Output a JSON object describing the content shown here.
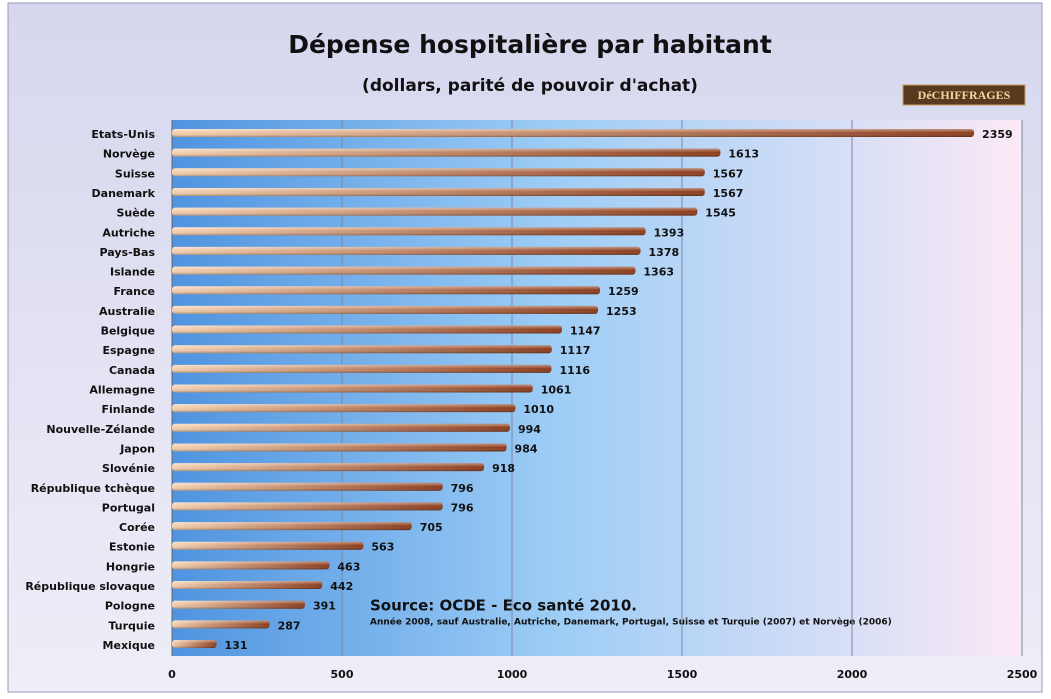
{
  "chart_data": {
    "type": "bar",
    "orientation": "horizontal",
    "title": "Dépense hospitalière par habitant",
    "subtitle": "(dollars, parité de pouvoir d'achat)",
    "logo": "DéCHIFFRAGES",
    "source": "Source: OCDE - Eco santé 2010.",
    "note": "Année 2008, sauf Australie, Autriche,  Danemark, Portugal, Suisse et Turquie (2007) et Norvège (2006)",
    "categories": [
      "Etats-Unis",
      "Norvège",
      "Suisse",
      "Danemark",
      "Suède",
      "Autriche",
      "Pays-Bas",
      "Islande",
      "France",
      "Australie",
      "Belgique",
      "Espagne",
      "Canada",
      "Allemagne",
      "Finlande",
      "Nouvelle-Zélande",
      "Japon",
      "Slovénie",
      "République tchèque",
      "Portugal",
      "Corée",
      "Estonie",
      "Hongrie",
      "République slovaque",
      "Pologne",
      "Turquie",
      "Mexique"
    ],
    "values": [
      2359,
      1613,
      1567,
      1567,
      1545,
      1393,
      1378,
      1363,
      1259,
      1253,
      1147,
      1117,
      1116,
      1061,
      1010,
      994,
      984,
      918,
      796,
      796,
      705,
      563,
      463,
      442,
      391,
      287,
      131
    ],
    "color": "#8b3a1a",
    "xlim": [
      0,
      2500
    ],
    "xticks": [
      0,
      500,
      1000,
      1500,
      2000,
      2500
    ],
    "grid": true
  }
}
